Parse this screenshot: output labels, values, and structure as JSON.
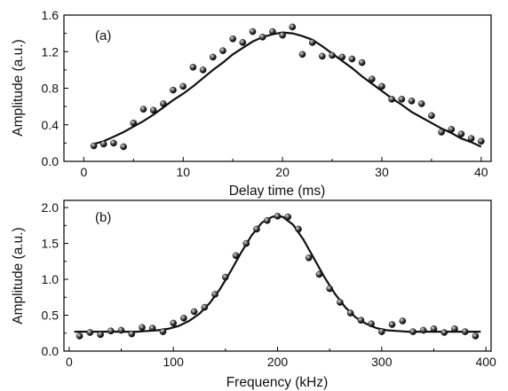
{
  "chart_data": [
    {
      "type": "scatter",
      "panel_label": "(a)",
      "xlabel": "Delay time (ms)",
      "ylabel": "Amplitude (a.u.)",
      "xlim": [
        -2,
        41
      ],
      "ylim": [
        0,
        1.6
      ],
      "x_ticks": [
        0,
        10,
        20,
        30,
        40
      ],
      "y_ticks": [
        0.0,
        0.4,
        0.8,
        1.2,
        1.6
      ],
      "x_tick_labels": [
        "0",
        "10",
        "20",
        "30",
        "40"
      ],
      "y_tick_labels": [
        "0.0",
        "0.4",
        "0.8",
        "1.2",
        "1.6"
      ],
      "grid": false,
      "series": [
        {
          "kind": "points",
          "x": [
            1,
            2,
            3,
            4,
            5,
            6,
            7,
            8,
            9,
            10,
            11,
            12,
            13,
            14,
            15,
            16,
            17,
            18,
            19,
            20,
            21,
            22,
            23,
            24,
            25,
            26,
            27,
            28,
            29,
            30,
            31,
            32,
            33,
            34,
            35,
            36,
            37,
            38,
            39,
            40
          ],
          "y": [
            0.17,
            0.19,
            0.2,
            0.16,
            0.42,
            0.57,
            0.56,
            0.63,
            0.78,
            0.82,
            1.03,
            1.0,
            1.14,
            1.21,
            1.34,
            1.3,
            1.42,
            1.36,
            1.42,
            1.38,
            1.47,
            1.17,
            1.3,
            1.15,
            1.16,
            1.14,
            1.12,
            1.08,
            0.9,
            0.82,
            0.68,
            0.68,
            0.66,
            0.63,
            0.5,
            0.32,
            0.35,
            0.3,
            0.25,
            0.22
          ]
        },
        {
          "kind": "fit",
          "x": [
            1,
            2,
            3,
            4,
            5,
            6,
            7,
            8,
            9,
            10,
            11,
            12,
            13,
            14,
            15,
            16,
            17,
            18,
            19,
            20,
            21,
            22,
            23,
            24,
            25,
            26,
            27,
            28,
            29,
            30,
            31,
            32,
            33,
            34,
            35,
            36,
            37,
            38,
            39,
            40
          ],
          "y": [
            0.19,
            0.22,
            0.27,
            0.32,
            0.38,
            0.44,
            0.51,
            0.59,
            0.67,
            0.74,
            0.82,
            0.91,
            1.0,
            1.08,
            1.17,
            1.24,
            1.31,
            1.36,
            1.39,
            1.41,
            1.4,
            1.37,
            1.33,
            1.26,
            1.18,
            1.1,
            1.02,
            0.93,
            0.85,
            0.77,
            0.69,
            0.62,
            0.54,
            0.48,
            0.42,
            0.36,
            0.31,
            0.25,
            0.21,
            0.16
          ]
        }
      ]
    },
    {
      "type": "scatter",
      "panel_label": "(b)",
      "xlabel": "Frequency (kHz)",
      "ylabel": "Amplitude (a.u.)",
      "xlim": [
        -5,
        405
      ],
      "ylim": [
        0,
        2.1
      ],
      "x_ticks": [
        0,
        100,
        200,
        300,
        400
      ],
      "y_ticks": [
        0.0,
        0.5,
        1.0,
        1.5,
        2.0
      ],
      "x_tick_labels": [
        "0",
        "100",
        "200",
        "300",
        "400"
      ],
      "y_tick_labels": [
        "0.0",
        "0.5",
        "1.0",
        "1.5",
        "2.0"
      ],
      "grid": false,
      "series": [
        {
          "kind": "points",
          "x": [
            10,
            20,
            30,
            40,
            50,
            60,
            70,
            80,
            90,
            100,
            110,
            120,
            130,
            140,
            150,
            160,
            170,
            180,
            190,
            200,
            210,
            220,
            230,
            240,
            250,
            260,
            270,
            280,
            290,
            300,
            310,
            320,
            330,
            340,
            350,
            360,
            370,
            380,
            390
          ],
          "y": [
            0.21,
            0.26,
            0.23,
            0.28,
            0.29,
            0.24,
            0.33,
            0.32,
            0.27,
            0.39,
            0.46,
            0.55,
            0.61,
            0.79,
            1.03,
            1.33,
            1.5,
            1.7,
            1.82,
            1.88,
            1.87,
            1.7,
            1.3,
            1.07,
            0.87,
            0.68,
            0.53,
            0.43,
            0.38,
            0.27,
            0.37,
            0.42,
            0.27,
            0.29,
            0.31,
            0.26,
            0.31,
            0.27,
            0.21
          ]
        },
        {
          "kind": "fit",
          "x": [
            5,
            15,
            25,
            35,
            45,
            55,
            65,
            75,
            85,
            95,
            105,
            115,
            125,
            135,
            145,
            155,
            165,
            175,
            185,
            195,
            200,
            205,
            215,
            225,
            235,
            245,
            255,
            265,
            275,
            285,
            295,
            305,
            315,
            325,
            335,
            345,
            355,
            365,
            375,
            385,
            395
          ],
          "y": [
            0.27,
            0.27,
            0.27,
            0.27,
            0.27,
            0.27,
            0.27,
            0.28,
            0.29,
            0.31,
            0.35,
            0.42,
            0.52,
            0.67,
            0.87,
            1.11,
            1.37,
            1.61,
            1.79,
            1.87,
            1.88,
            1.87,
            1.76,
            1.55,
            1.29,
            1.03,
            0.8,
            0.61,
            0.47,
            0.38,
            0.32,
            0.29,
            0.28,
            0.27,
            0.27,
            0.27,
            0.27,
            0.27,
            0.27,
            0.27,
            0.27
          ]
        }
      ]
    }
  ]
}
